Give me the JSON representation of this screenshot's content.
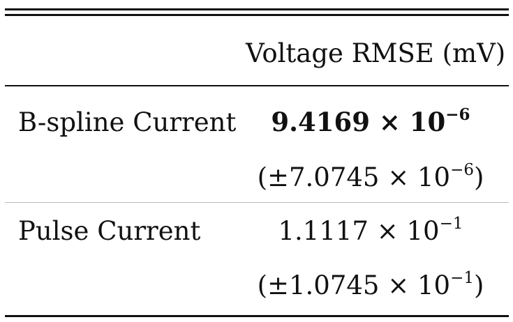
{
  "table": {
    "header": {
      "empty": "",
      "column": "Voltage RMSE (mV)"
    },
    "rows": [
      {
        "label": "B-spline Current",
        "mean_mantissa": "9.4169 × 10",
        "mean_exponent": "−6",
        "sd_prefix": "(±7.0745 × 10",
        "sd_exponent": "−6",
        "sd_suffix": ")",
        "best": true
      },
      {
        "label": "Pulse Current",
        "mean_mantissa": "1.1117 × 10",
        "mean_exponent": "−1",
        "sd_prefix": "(±1.0745 × 10",
        "sd_exponent": "−1",
        "sd_suffix": ")",
        "best": false
      }
    ]
  }
}
